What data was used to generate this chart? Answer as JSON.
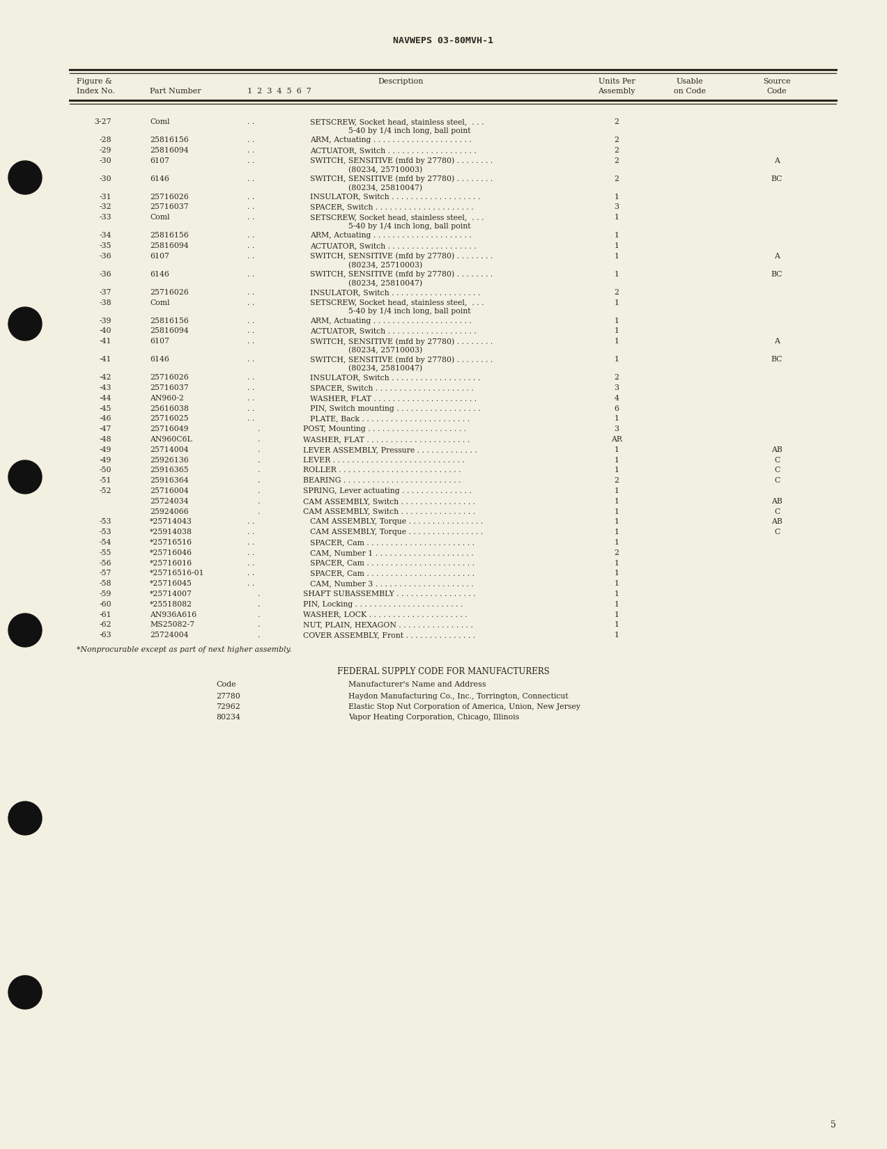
{
  "bg_color": "#f2f0e0",
  "header_title": "NAVWEPS 03-80MVH-1",
  "rows": [
    {
      "fig": "3-27",
      "part": "Coml",
      "indent": 2,
      "desc": "SETSCREW, Socket head, stainless steel,  . . .",
      "desc2": "5-40 by 1/4 inch long, ball point",
      "units": "2",
      "source": ""
    },
    {
      "fig": "-28",
      "part": "25816156",
      "indent": 2,
      "desc": "ARM, Actuating . . . . . . . . . . . . . . . . . . . . .",
      "desc2": "",
      "units": "2",
      "source": ""
    },
    {
      "fig": "-29",
      "part": "25816094",
      "indent": 2,
      "desc": "ACTUATOR, Switch . . . . . . . . . . . . . . . . . . .",
      "desc2": "",
      "units": "2",
      "source": ""
    },
    {
      "fig": "-30",
      "part": "6107",
      "indent": 2,
      "desc": "SWITCH, SENSITIVE (mfd by 27780) . . . . . . . .",
      "desc2": "(80234, 25710003)",
      "units": "2",
      "source": "A"
    },
    {
      "fig": "-30",
      "part": "6146",
      "indent": 2,
      "desc": "SWITCH, SENSITIVE (mfd by 27780) . . . . . . . .",
      "desc2": "(80234, 25810047)",
      "units": "2",
      "source": "BC"
    },
    {
      "fig": "-31",
      "part": "25716026",
      "indent": 2,
      "desc": "INSULATOR, Switch . . . . . . . . . . . . . . . . . . .",
      "desc2": "",
      "units": "1",
      "source": ""
    },
    {
      "fig": "-32",
      "part": "25716037",
      "indent": 2,
      "desc": "SPACER, Switch . . . . . . . . . . . . . . . . . . . . .",
      "desc2": "",
      "units": "3",
      "source": ""
    },
    {
      "fig": "-33",
      "part": "Coml",
      "indent": 2,
      "desc": "SETSCREW, Socket head, stainless steel,  . . .",
      "desc2": "5-40 by 1/4 inch long, ball point",
      "units": "1",
      "source": ""
    },
    {
      "fig": "-34",
      "part": "25816156",
      "indent": 2,
      "desc": "ARM, Actuating . . . . . . . . . . . . . . . . . . . . .",
      "desc2": "",
      "units": "1",
      "source": ""
    },
    {
      "fig": "-35",
      "part": "25816094",
      "indent": 2,
      "desc": "ACTUATOR, Switch . . . . . . . . . . . . . . . . . . .",
      "desc2": "",
      "units": "1",
      "source": ""
    },
    {
      "fig": "-36",
      "part": "6107",
      "indent": 2,
      "desc": "SWITCH, SENSITIVE (mfd by 27780) . . . . . . . .",
      "desc2": "(80234, 25710003)",
      "units": "1",
      "source": "A"
    },
    {
      "fig": "-36",
      "part": "6146",
      "indent": 2,
      "desc": "SWITCH, SENSITIVE (mfd by 27780) . . . . . . . .",
      "desc2": "(80234, 25810047)",
      "units": "1",
      "source": "BC"
    },
    {
      "fig": "-37",
      "part": "25716026",
      "indent": 2,
      "desc": "INSULATOR, Switch . . . . . . . . . . . . . . . . . . .",
      "desc2": "",
      "units": "2",
      "source": ""
    },
    {
      "fig": "-38",
      "part": "Coml",
      "indent": 2,
      "desc": "SETSCREW, Socket head, stainless steel,  . . .",
      "desc2": "5-40 by 1/4 inch long, ball point",
      "units": "1",
      "source": ""
    },
    {
      "fig": "-39",
      "part": "25816156",
      "indent": 2,
      "desc": "ARM, Actuating . . . . . . . . . . . . . . . . . . . . .",
      "desc2": "",
      "units": "1",
      "source": ""
    },
    {
      "fig": "-40",
      "part": "25816094",
      "indent": 2,
      "desc": "ACTUATOR, Switch . . . . . . . . . . . . . . . . . . .",
      "desc2": "",
      "units": "1",
      "source": ""
    },
    {
      "fig": "-41",
      "part": "6107",
      "indent": 2,
      "desc": "SWITCH, SENSITIVE (mfd by 27780) . . . . . . . .",
      "desc2": "(80234, 25710003)",
      "units": "1",
      "source": "A"
    },
    {
      "fig": "-41",
      "part": "6146",
      "indent": 2,
      "desc": "SWITCH, SENSITIVE (mfd by 27780) . . . . . . . .",
      "desc2": "(80234, 25810047)",
      "units": "1",
      "source": "BC"
    },
    {
      "fig": "-42",
      "part": "25716026",
      "indent": 2,
      "desc": "INSULATOR, Switch . . . . . . . . . . . . . . . . . . .",
      "desc2": "",
      "units": "2",
      "source": ""
    },
    {
      "fig": "-43",
      "part": "25716037",
      "indent": 2,
      "desc": "SPACER, Switch . . . . . . . . . . . . . . . . . . . . .",
      "desc2": "",
      "units": "3",
      "source": ""
    },
    {
      "fig": "-44",
      "part": "AN960-2",
      "indent": 2,
      "desc": "WASHER, FLAT . . . . . . . . . . . . . . . . . . . . . .",
      "desc2": "",
      "units": "4",
      "source": ""
    },
    {
      "fig": "-45",
      "part": "25616038",
      "indent": 2,
      "desc": "PIN, Switch mounting . . . . . . . . . . . . . . . . . .",
      "desc2": "",
      "units": "6",
      "source": ""
    },
    {
      "fig": "-46",
      "part": "25716025",
      "indent": 2,
      "desc": "PLATE, Back . . . . . . . . . . . . . . . . . . . . . . .",
      "desc2": "",
      "units": "1",
      "source": ""
    },
    {
      "fig": "-47",
      "part": "25716049",
      "indent": 1,
      "desc": "POST, Mounting . . . . . . . . . . . . . . . . . . . . .",
      "desc2": "",
      "units": "3",
      "source": ""
    },
    {
      "fig": "-48",
      "part": "AN960C6L",
      "indent": 1,
      "desc": "WASHER, FLAT . . . . . . . . . . . . . . . . . . . . . .",
      "desc2": "",
      "units": "AR",
      "source": ""
    },
    {
      "fig": "-49",
      "part": "25714004",
      "indent": 1,
      "desc": "LEVER ASSEMBLY, Pressure . . . . . . . . . . . . .",
      "desc2": "",
      "units": "1",
      "source": "AB"
    },
    {
      "fig": "-49",
      "part": "25926136",
      "indent": 1,
      "desc": "LEVER . . . . . . . . . . . . . . . . . . . . . . . . . . . .",
      "desc2": "",
      "units": "1",
      "source": "C"
    },
    {
      "fig": "-50",
      "part": "25916365",
      "indent": 1,
      "desc": "ROLLER . . . . . . . . . . . . . . . . . . . . . . . . . .",
      "desc2": "",
      "units": "1",
      "source": "C"
    },
    {
      "fig": "-51",
      "part": "25916364",
      "indent": 1,
      "desc": "BEARING . . . . . . . . . . . . . . . . . . . . . . . . .",
      "desc2": "",
      "units": "2",
      "source": "C"
    },
    {
      "fig": "-52",
      "part": "25716004",
      "indent": 1,
      "desc": "SPRING, Lever actuating . . . . . . . . . . . . . . .",
      "desc2": "",
      "units": "1",
      "source": ""
    },
    {
      "fig": "",
      "part": "25724034",
      "indent": 1,
      "desc": "CAM ASSEMBLY, Switch . . . . . . . . . . . . . . . .",
      "desc2": "",
      "units": "1",
      "source": "AB"
    },
    {
      "fig": "",
      "part": "25924066",
      "indent": 1,
      "desc": "CAM ASSEMBLY, Switch . . . . . . . . . . . . . . . .",
      "desc2": "",
      "units": "1",
      "source": "C"
    },
    {
      "fig": "-53",
      "part": "*25714043",
      "indent": 2,
      "desc": "CAM ASSEMBLY, Torque . . . . . . . . . . . . . . . .",
      "desc2": "",
      "units": "1",
      "source": "AB"
    },
    {
      "fig": "-53",
      "part": "*25914038",
      "indent": 2,
      "desc": "CAM ASSEMBLY, Torque . . . . . . . . . . . . . . . .",
      "desc2": "",
      "units": "1",
      "source": "C"
    },
    {
      "fig": "-54",
      "part": "*25716516",
      "indent": 2,
      "desc": "SPACER, Cam . . . . . . . . . . . . . . . . . . . . . . .",
      "desc2": "",
      "units": "1",
      "source": ""
    },
    {
      "fig": "-55",
      "part": "*25716046",
      "indent": 2,
      "desc": "CAM, Number 1 . . . . . . . . . . . . . . . . . . . . .",
      "desc2": "",
      "units": "2",
      "source": ""
    },
    {
      "fig": "-56",
      "part": "*25716016",
      "indent": 2,
      "desc": "SPACER, Cam . . . . . . . . . . . . . . . . . . . . . . .",
      "desc2": "",
      "units": "1",
      "source": ""
    },
    {
      "fig": "-57",
      "part": "*25716516-01",
      "indent": 2,
      "desc": "SPACER, Cam . . . . . . . . . . . . . . . . . . . . . . .",
      "desc2": "",
      "units": "1",
      "source": ""
    },
    {
      "fig": "-58",
      "part": "*25716045",
      "indent": 2,
      "desc": "CAM, Number 3 . . . . . . . . . . . . . . . . . . . . .",
      "desc2": "",
      "units": "1",
      "source": ""
    },
    {
      "fig": "-59",
      "part": "*25714007",
      "indent": 1,
      "desc": "SHAFT SUBASSEMBLY . . . . . . . . . . . . . . . . .",
      "desc2": "",
      "units": "1",
      "source": ""
    },
    {
      "fig": "-60",
      "part": "*25518082",
      "indent": 1,
      "desc": "PIN, Locking . . . . . . . . . . . . . . . . . . . . . . .",
      "desc2": "",
      "units": "1",
      "source": ""
    },
    {
      "fig": "-61",
      "part": "AN936A616",
      "indent": 1,
      "desc": "WASHER, LOCK . . . . . . . . . . . . . . . . . . . . .",
      "desc2": "",
      "units": "1",
      "source": ""
    },
    {
      "fig": "-62",
      "part": "MS25082-7",
      "indent": 1,
      "desc": "NUT, PLAIN, HEXAGON . . . . . . . . . . . . . . . .",
      "desc2": "",
      "units": "1",
      "source": ""
    },
    {
      "fig": "-63",
      "part": "25724004",
      "indent": 1,
      "desc": "COVER ASSEMBLY, Front . . . . . . . . . . . . . . .",
      "desc2": "",
      "units": "1",
      "source": ""
    }
  ],
  "footnote": "*Nonprocurable except as part of next higher assembly.",
  "federal_title": "FEDERAL SUPPLY CODE FOR MANUFACTURERS",
  "federal_col1": "Code",
  "federal_col2": "Manufacturer's Name and Address",
  "federal_rows": [
    [
      "27780",
      "Haydon Manufacturing Co., Inc., Torrington, Connecticut"
    ],
    [
      "72962",
      "Elastic Stop Nut Corporation of America, Union, New Jersey"
    ],
    [
      "80234",
      "Vapor Heating Corporation, Chicago, Illinois"
    ]
  ],
  "page_number": "5",
  "text_color": "#2a2520",
  "line_color": "#2a2520",
  "hole_color": "#111111"
}
